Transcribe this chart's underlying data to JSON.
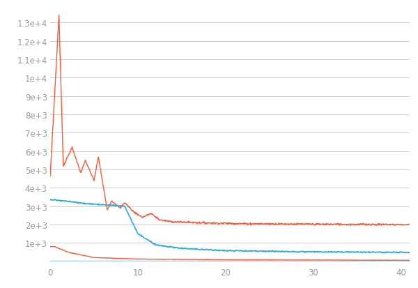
{
  "background_color": "#ffffff",
  "grid_color": "#cccccc",
  "line_color_orange": "#FF5733",
  "line_color_blue": "#29ABE2",
  "yticks": [
    1000,
    2000,
    3000,
    4000,
    5000,
    6000,
    7000,
    8000,
    9000,
    10000,
    11000,
    12000,
    13000
  ],
  "ytick_labels": [
    "1e+3",
    "2e+3",
    "3e+3",
    "4e+3",
    "5e+3",
    "6e+3",
    "7e+3",
    "8e+3",
    "9e+3",
    "1e+4",
    "1.1e+4",
    "1.2e+4",
    "1.3e+4"
  ],
  "xticks": [
    0,
    10,
    20,
    30,
    40
  ],
  "xlim": [
    0,
    41
  ],
  "ylim": [
    -200,
    13800
  ]
}
